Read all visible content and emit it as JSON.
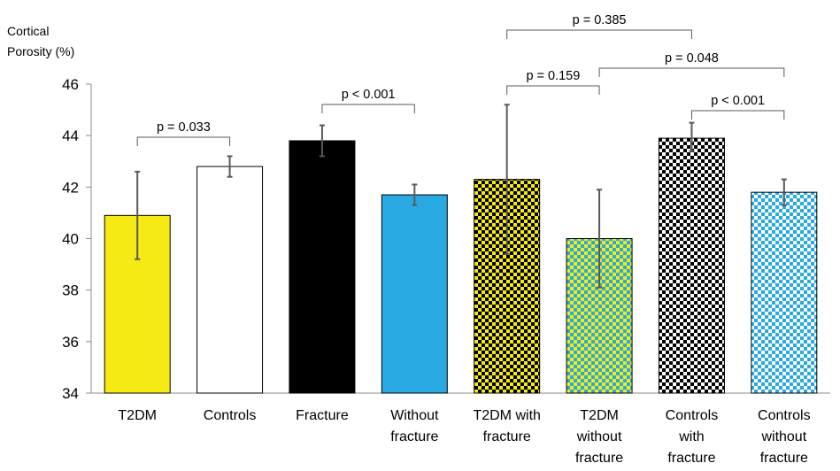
{
  "chart_data": {
    "type": "bar",
    "title": "",
    "ylabel_lines": [
      "Cortical",
      "Porosity (%)"
    ],
    "xlabel": "",
    "ylim": [
      34,
      46
    ],
    "yticks": [
      34,
      36,
      38,
      40,
      42,
      44,
      46
    ],
    "grid": false,
    "legend": "none",
    "categories": [
      [
        "T2DM"
      ],
      [
        "Controls"
      ],
      [
        "Fracture"
      ],
      [
        "Without",
        "fracture"
      ],
      [
        "T2DM with",
        "fracture"
      ],
      [
        "T2DM",
        "without",
        "fracture"
      ],
      [
        "Controls",
        "with",
        "fracture"
      ],
      [
        "Controls",
        "without",
        "fracture"
      ]
    ],
    "values": [
      40.9,
      42.8,
      43.8,
      41.7,
      42.3,
      40.0,
      43.9,
      41.8
    ],
    "error_low": [
      39.2,
      42.4,
      43.2,
      41.3,
      39.4,
      38.1,
      43.4,
      41.3
    ],
    "error_high": [
      42.6,
      43.2,
      44.4,
      42.1,
      45.2,
      41.9,
      44.5,
      42.3
    ],
    "bar_fills": [
      "yellow",
      "white",
      "black",
      "blue",
      "yellow-black-checker",
      "yellow-blue-checker",
      "white-black-checker",
      "white-blue-checker"
    ],
    "colors": {
      "yellow": "#f6ea14",
      "blue": "#29a9e1",
      "black": "#000000",
      "white": "#ffffff"
    },
    "annotations": [
      {
        "from": 0,
        "to": 1,
        "label": "p = 0.033"
      },
      {
        "from": 2,
        "to": 3,
        "label": "p < 0.001"
      },
      {
        "from": 4,
        "to": 5,
        "label": "p = 0.159"
      },
      {
        "from": 4,
        "to": 6,
        "label": "p = 0.385"
      },
      {
        "from": 5,
        "to": 7,
        "label": "p = 0.048"
      },
      {
        "from": 6,
        "to": 7,
        "label": "p < 0.001"
      }
    ]
  }
}
